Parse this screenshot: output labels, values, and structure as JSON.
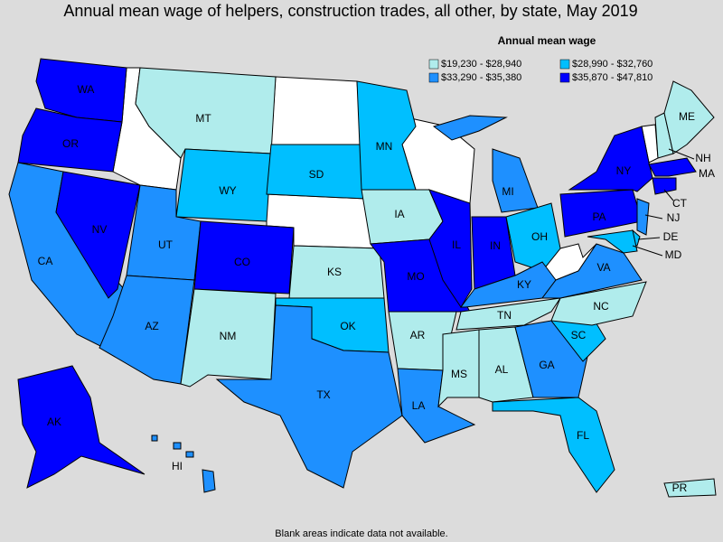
{
  "title": "Annual mean wage of helpers, construction trades, all other, by state, May 2019",
  "legend": {
    "title": "Annual mean wage",
    "bins": [
      {
        "label": "$19,230 - $28,940",
        "color": "#b0ecec"
      },
      {
        "label": "$28,990 - $32,760",
        "color": "#00bfff"
      },
      {
        "label": "$33,290 - $35,380",
        "color": "#1e90ff"
      },
      {
        "label": "$35,870 - $47,810",
        "color": "#0000ff"
      }
    ]
  },
  "states": [
    {
      "label": "WA",
      "bin": "$35,870 - $47,810"
    },
    {
      "label": "OR",
      "bin": "$35,870 - $47,810"
    },
    {
      "label": "CA",
      "bin": "$33,290 - $35,380"
    },
    {
      "label": "NV",
      "bin": "$35,870 - $47,810"
    },
    {
      "label": "MT",
      "bin": "$19,230 - $28,940"
    },
    {
      "label": "WY",
      "bin": "$28,990 - $32,760"
    },
    {
      "label": "UT",
      "bin": "$33,290 - $35,380"
    },
    {
      "label": "AZ",
      "bin": "$33,290 - $35,380"
    },
    {
      "label": "CO",
      "bin": "$35,870 - $47,810"
    },
    {
      "label": "NM",
      "bin": "$19,230 - $28,940"
    },
    {
      "label": "SD",
      "bin": "$28,990 - $32,760"
    },
    {
      "label": "KS",
      "bin": "$19,230 - $28,940"
    },
    {
      "label": "OK",
      "bin": "$28,990 - $32,760"
    },
    {
      "label": "TX",
      "bin": "$33,290 - $35,380"
    },
    {
      "label": "MN",
      "bin": "$28,990 - $32,760"
    },
    {
      "label": "IA",
      "bin": "$19,230 - $28,940"
    },
    {
      "label": "MO",
      "bin": "$35,870 - $47,810"
    },
    {
      "label": "AR",
      "bin": "$19,230 - $28,940"
    },
    {
      "label": "LA",
      "bin": "$33,290 - $35,380"
    },
    {
      "label": "IL",
      "bin": "$35,870 - $47,810"
    },
    {
      "label": "MI",
      "bin": "$33,290 - $35,380"
    },
    {
      "label": "IN",
      "bin": "$35,870 - $47,810"
    },
    {
      "label": "OH",
      "bin": "$28,990 - $32,760"
    },
    {
      "label": "KY",
      "bin": "$33,290 - $35,380"
    },
    {
      "label": "TN",
      "bin": "$19,230 - $28,940"
    },
    {
      "label": "MS",
      "bin": "$19,230 - $28,940"
    },
    {
      "label": "AL",
      "bin": "$19,230 - $28,940"
    },
    {
      "label": "GA",
      "bin": "$33,290 - $35,380"
    },
    {
      "label": "FL",
      "bin": "$28,990 - $32,760"
    },
    {
      "label": "SC",
      "bin": "$28,990 - $32,760"
    },
    {
      "label": "NC",
      "bin": "$19,230 - $28,940"
    },
    {
      "label": "VA",
      "bin": "$33,290 - $35,380"
    },
    {
      "label": "PA",
      "bin": "$35,870 - $47,810"
    },
    {
      "label": "NY",
      "bin": "$35,870 - $47,810"
    },
    {
      "label": "NH",
      "bin": "$19,230 - $28,940"
    },
    {
      "label": "ME",
      "bin": "$19,230 - $28,940"
    },
    {
      "label": "MA",
      "bin": "$35,870 - $47,810"
    },
    {
      "label": "CT",
      "bin": "$35,870 - $47,810"
    },
    {
      "label": "NJ",
      "bin": "$33,290 - $35,380"
    },
    {
      "label": "DE",
      "bin": "$28,990 - $32,760"
    },
    {
      "label": "MD",
      "bin": "$28,990 - $32,760"
    },
    {
      "label": "AK",
      "bin": "$35,870 - $47,810"
    },
    {
      "label": "HI",
      "bin": "$33,290 - $35,380"
    },
    {
      "label": "PR",
      "bin": "$19,230 - $28,940"
    }
  ],
  "footnote": "Blank areas indicate data not available."
}
